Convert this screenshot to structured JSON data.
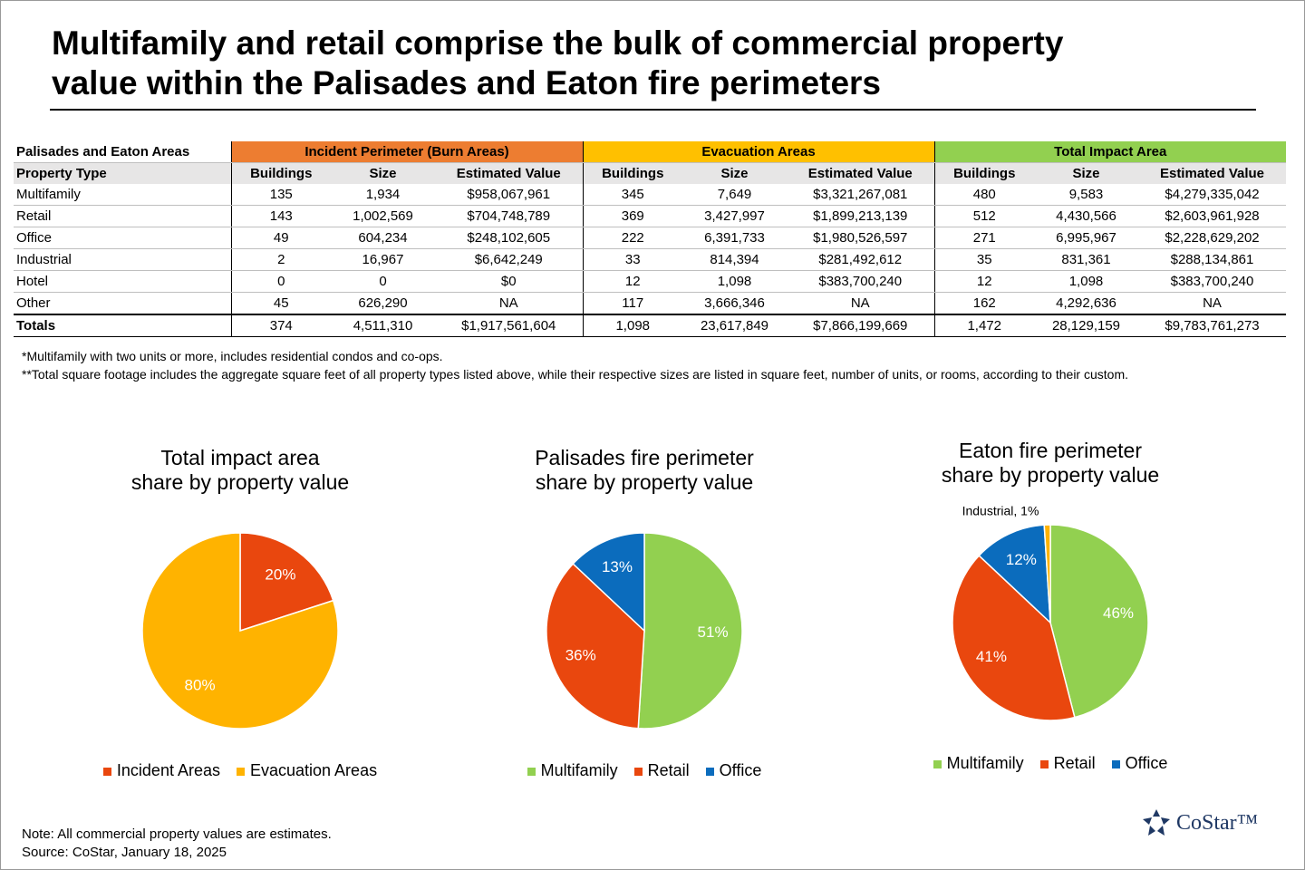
{
  "title": "Multifamily and retail comprise the bulk of commercial property\nvalue within the Palisades and Eaton fire perimeters",
  "table": {
    "corner": "Palisades and Eaton Areas",
    "row_header": "Property Type",
    "groups": [
      {
        "name": "Incident Perimeter (Burn Areas)",
        "color": "#ed7d31"
      },
      {
        "name": "Evacuation Areas",
        "color": "#ffc000"
      },
      {
        "name": "Total Impact Area",
        "color": "#92d050"
      }
    ],
    "columns": [
      "Buildings",
      "Size",
      "Estimated Value"
    ],
    "rows": [
      [
        "Multifamily",
        "135",
        "1,934",
        "$958,067,961",
        "345",
        "7,649",
        "$3,321,267,081",
        "480",
        "9,583",
        "$4,279,335,042"
      ],
      [
        "Retail",
        "143",
        "1,002,569",
        "$704,748,789",
        "369",
        "3,427,997",
        "$1,899,213,139",
        "512",
        "4,430,566",
        "$2,603,961,928"
      ],
      [
        "Office",
        "49",
        "604,234",
        "$248,102,605",
        "222",
        "6,391,733",
        "$1,980,526,597",
        "271",
        "6,995,967",
        "$2,228,629,202"
      ],
      [
        "Industrial",
        "2",
        "16,967",
        "$6,642,249",
        "33",
        "814,394",
        "$281,492,612",
        "35",
        "831,361",
        "$288,134,861"
      ],
      [
        "Hotel",
        "0",
        "0",
        "$0",
        "12",
        "1,098",
        "$383,700,240",
        "12",
        "1,098",
        "$383,700,240"
      ],
      [
        "Other",
        "45",
        "626,290",
        "NA",
        "117",
        "3,666,346",
        "NA",
        "162",
        "4,292,636",
        "NA"
      ]
    ],
    "totals": [
      "Totals",
      "374",
      "4,511,310",
      "$1,917,561,604",
      "1,098",
      "23,617,849",
      "$7,866,199,669",
      "1,472",
      "28,129,159",
      "$9,783,761,273"
    ]
  },
  "footnotes": [
    "*Multifamily with two units or more, includes residential condos and co-ops.",
    "**Total square footage includes the aggregate square feet of all property types listed above, while their respective sizes are listed in square feet, number of units, or rooms, according to their custom."
  ],
  "chart_data": [
    {
      "type": "pie",
      "title": "Total impact area\nshare by property value",
      "categories": [
        "Incident Areas",
        "Evacuation Areas"
      ],
      "values": [
        20,
        80
      ],
      "value_labels": [
        "20%",
        "80%"
      ],
      "colors": [
        "#e9470e",
        "#ffb300"
      ]
    },
    {
      "type": "pie",
      "title": "Palisades fire perimeter\nshare by property value",
      "categories": [
        "Multifamily",
        "Retail",
        "Office"
      ],
      "values": [
        51,
        36,
        13
      ],
      "value_labels": [
        "51%",
        "36%",
        "13%"
      ],
      "colors": [
        "#92d050",
        "#e9470e",
        "#0b6cbd"
      ]
    },
    {
      "type": "pie",
      "title": "Eaton fire perimeter\nshare by property value",
      "categories": [
        "Multifamily",
        "Retail",
        "Office",
        null
      ],
      "values": [
        46,
        41,
        12,
        1
      ],
      "value_labels": [
        "46%",
        "41%",
        "12%",
        "Industrial, 1%"
      ],
      "colors": [
        "#92d050",
        "#e9470e",
        "#0b6cbd",
        "#ffb300"
      ]
    }
  ],
  "note": "Note: All commercial property values are estimates.",
  "source": "Source: CoStar, January 18, 2025",
  "logo": "CoStar™"
}
